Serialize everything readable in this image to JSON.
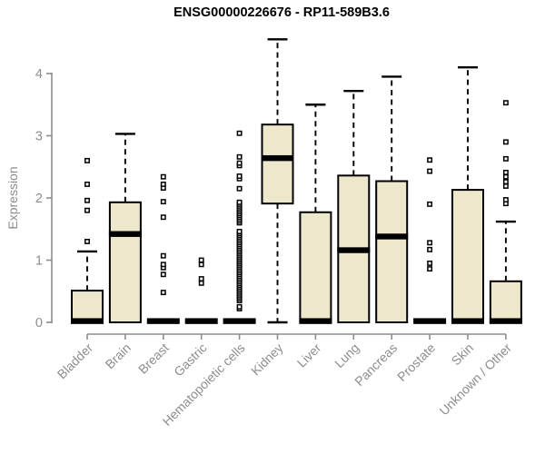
{
  "chart_data": {
    "type": "boxplot",
    "title": "ENSG00000226676 - RP11-589B3.6",
    "xlabel": "",
    "ylabel": "Expression",
    "ylim": [
      0,
      4.6
    ],
    "yticks": [
      0,
      1,
      2,
      3,
      4
    ],
    "grid": "off",
    "legend": "none",
    "categories": [
      "Bladder",
      "Brain",
      "Breast",
      "Gastric",
      "Hematopoietic cells",
      "Kidney",
      "Liver",
      "Lung",
      "Pancreas",
      "Prostate",
      "Skin",
      "Unknown / Other"
    ],
    "boxes": [
      {
        "label": "Bladder",
        "q1": 0,
        "median": 0.02,
        "q3": 0.51,
        "whisker_low": 0,
        "whisker_high": 1.14,
        "outliers": [
          1.3,
          1.8,
          1.96,
          2.22,
          2.6
        ]
      },
      {
        "label": "Brain",
        "q1": 0,
        "median": 1.42,
        "q3": 1.93,
        "whisker_low": 0,
        "whisker_high": 3.03,
        "outliers": []
      },
      {
        "label": "Breast",
        "q1": 0,
        "median": 0.02,
        "q3": 0,
        "whisker_low": 0,
        "whisker_high": 0,
        "outliers": [
          0.48,
          0.77,
          0.88,
          0.93,
          1.07,
          1.69,
          1.94,
          2.16,
          2.22,
          2.34
        ]
      },
      {
        "label": "Gastric",
        "q1": 0,
        "median": 0.02,
        "q3": 0,
        "whisker_low": 0,
        "whisker_high": 0,
        "outliers": [
          0.63,
          0.7,
          0.93,
          1.0
        ]
      },
      {
        "label": "Hematopoietic cells",
        "q1": 0,
        "median": 0.02,
        "q3": 0,
        "whisker_low": 0,
        "whisker_high": 0,
        "outliers": [
          0.22,
          0.25,
          0.35,
          0.38,
          0.41,
          0.44,
          0.47,
          0.5,
          0.53,
          0.56,
          0.59,
          0.62,
          0.65,
          0.68,
          0.71,
          0.74,
          0.77,
          0.8,
          0.83,
          0.86,
          0.89,
          0.92,
          0.95,
          0.98,
          1.01,
          1.04,
          1.07,
          1.1,
          1.13,
          1.16,
          1.19,
          1.22,
          1.25,
          1.28,
          1.31,
          1.34,
          1.37,
          1.4,
          1.43,
          1.46,
          1.6,
          1.63,
          1.66,
          1.69,
          1.72,
          1.75,
          1.78,
          1.81,
          1.84,
          1.87,
          1.9,
          1.93,
          2.15,
          2.31,
          2.35,
          2.52,
          2.56,
          2.66,
          3.04
        ]
      },
      {
        "label": "Kidney",
        "q1": 1.91,
        "median": 2.64,
        "q3": 3.18,
        "whisker_low": 0,
        "whisker_high": 4.55,
        "outliers": []
      },
      {
        "label": "Liver",
        "q1": 0,
        "median": 0.02,
        "q3": 1.77,
        "whisker_low": 0,
        "whisker_high": 3.5,
        "outliers": []
      },
      {
        "label": "Lung",
        "q1": 0,
        "median": 1.16,
        "q3": 2.36,
        "whisker_low": 0,
        "whisker_high": 3.72,
        "outliers": []
      },
      {
        "label": "Pancreas",
        "q1": 0,
        "median": 1.38,
        "q3": 2.27,
        "whisker_low": 0,
        "whisker_high": 3.95,
        "outliers": []
      },
      {
        "label": "Prostate",
        "q1": 0,
        "median": 0.02,
        "q3": 0,
        "whisker_low": 0,
        "whisker_high": 0,
        "outliers": [
          0.86,
          0.95,
          1.17,
          1.28,
          1.9,
          2.43,
          2.61
        ]
      },
      {
        "label": "Skin",
        "q1": 0,
        "median": 0.02,
        "q3": 2.13,
        "whisker_low": 0,
        "whisker_high": 4.1,
        "outliers": []
      },
      {
        "label": "Unknown / Other",
        "q1": 0,
        "median": 0.02,
        "q3": 0.66,
        "whisker_low": 0,
        "whisker_high": 1.62,
        "outliers": [
          1.91,
          1.97,
          2.19,
          2.26,
          2.34,
          2.41,
          2.63,
          2.9,
          3.53
        ]
      }
    ],
    "colors": {
      "box_fill": "#ede7cc",
      "box_stroke": "#000000",
      "median": "#000000",
      "outlier_stroke": "#000000",
      "axis": "#8d8d8d",
      "tick_label": "#8d8d8d",
      "title": "#000000",
      "background": "#ffffff"
    }
  }
}
